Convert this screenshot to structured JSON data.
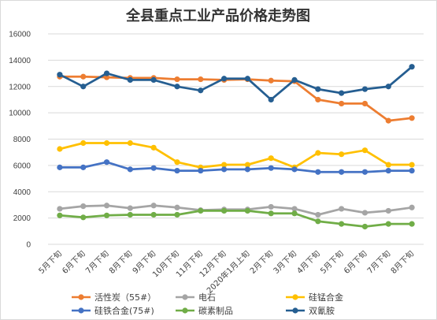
{
  "chart_data": {
    "type": "line",
    "title": "全县重点工业产品价格走势图",
    "xlabel": "",
    "ylabel": "",
    "ylim": [
      0,
      16000
    ],
    "yticks": [
      0,
      2000,
      4000,
      6000,
      8000,
      10000,
      12000,
      14000,
      16000
    ],
    "grid": true,
    "legend_position": "bottom",
    "categories": [
      "5月下旬",
      "6月下旬",
      "7月下旬",
      "8月下旬",
      "9月下旬",
      "10月下旬",
      "11月下旬",
      "12月下旬",
      "2020年1月上旬",
      "2月下旬",
      "3月下旬",
      "4月下旬",
      "5月下旬",
      "6月下旬",
      "7月下旬",
      "8月下旬"
    ],
    "series": [
      {
        "name": "活性炭（55#）",
        "color": "#ed7d31",
        "values": [
          12750,
          12750,
          12700,
          12650,
          12650,
          12550,
          12550,
          12500,
          12550,
          12450,
          12400,
          11000,
          10700,
          10700,
          9400,
          9600
        ]
      },
      {
        "name": "电石",
        "color": "#a5a5a5",
        "values": [
          2700,
          2900,
          2950,
          2750,
          2950,
          2800,
          2600,
          2650,
          2650,
          2850,
          2700,
          2250,
          2700,
          2400,
          2550,
          2800
        ]
      },
      {
        "name": "硅锰合金",
        "color": "#ffc000",
        "values": [
          7250,
          7700,
          7700,
          7700,
          7350,
          6250,
          5850,
          6050,
          6050,
          6550,
          5850,
          6950,
          6850,
          7150,
          6050,
          6050
        ]
      },
      {
        "name": "硅铁合金(75#)",
        "color": "#4472c4",
        "values": [
          5850,
          5850,
          6250,
          5700,
          5800,
          5600,
          5600,
          5700,
          5700,
          5800,
          5700,
          5500,
          5500,
          5500,
          5600,
          5600
        ]
      },
      {
        "name": "碳素制品",
        "color": "#70ad47",
        "values": [
          2200,
          2050,
          2200,
          2250,
          2250,
          2250,
          2550,
          2550,
          2550,
          2350,
          2350,
          1750,
          1550,
          1350,
          1550,
          1550
        ]
      },
      {
        "name": "双氰胺",
        "color": "#255e91",
        "values": [
          12900,
          12000,
          13000,
          12500,
          12500,
          12000,
          11700,
          12600,
          12600,
          11000,
          12500,
          11800,
          11500,
          11800,
          12000,
          13500
        ]
      }
    ]
  }
}
